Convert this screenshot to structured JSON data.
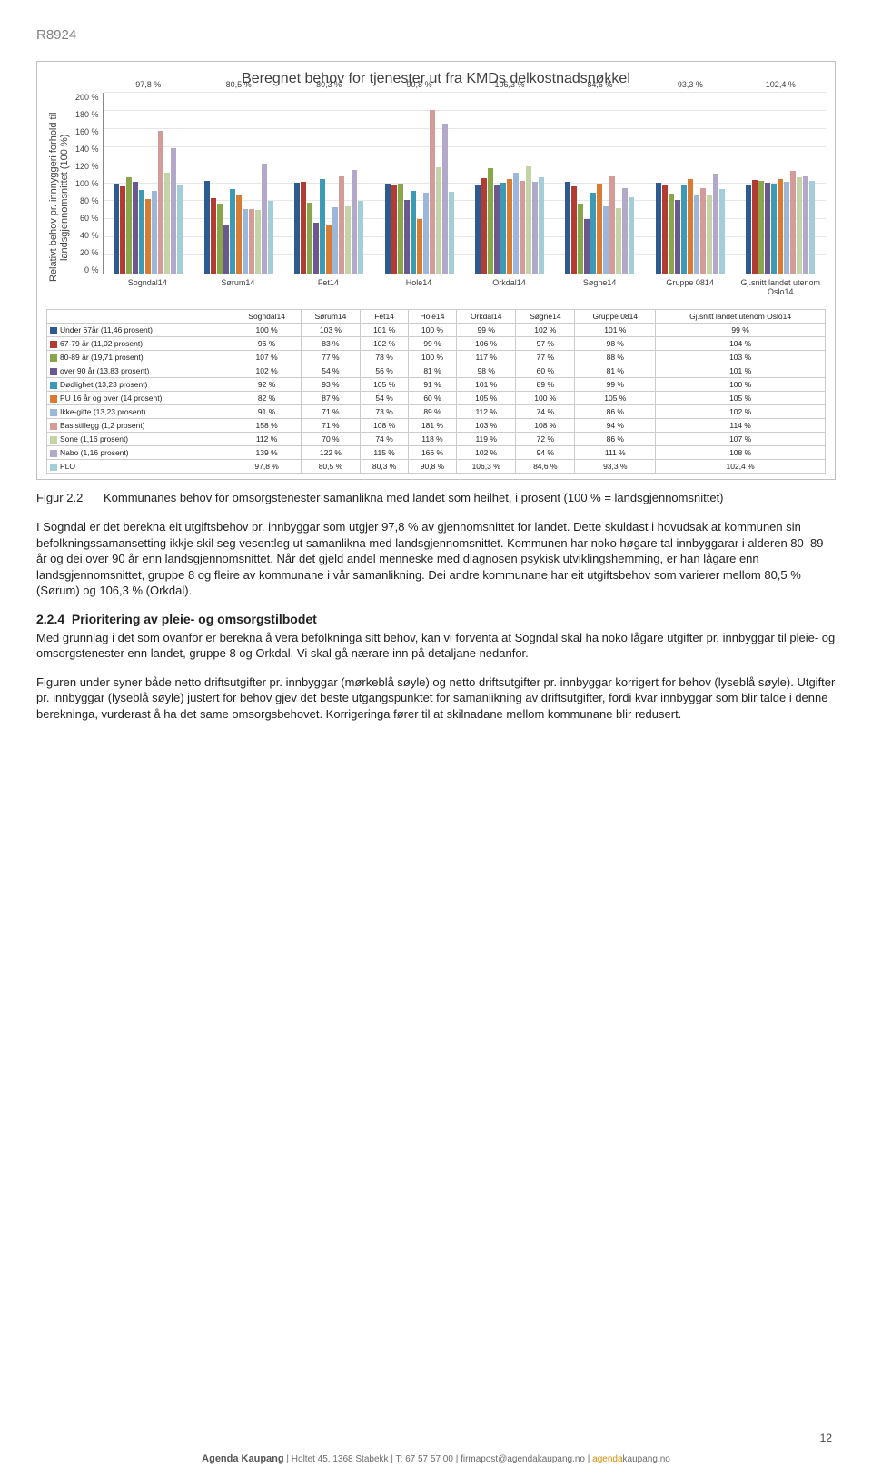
{
  "doc_id": "R8924",
  "chart": {
    "title": "Beregnet behov for tjenester ut fra KMDs delkostnadsnøkkel",
    "y_axis_label": "Relativt behov pr. innnyggeri forhold til landsgjennomsnittet (100 %)",
    "ylim": [
      0,
      200
    ],
    "ytick_step": 20,
    "grid_color": "#e6e6e6",
    "categories": [
      "Sogndal14",
      "Sørum14",
      "Fet14",
      "Hole14",
      "Orkdal14",
      "Søgne14",
      "Gruppe 0814",
      "Gj.snitt landet utenom Oslo14"
    ],
    "plo_values": [
      "97,8 %",
      "80,5 %",
      "80,3 %",
      "90,8 %",
      "106,3 %",
      "84,6 %",
      "93,3 %",
      "102,4 %"
    ],
    "series": [
      {
        "name": "Under 67år (11,46 prosent)",
        "color": "#2e5b8f",
        "values": [
          100,
          103,
          101,
          100,
          99,
          102,
          101,
          99
        ]
      },
      {
        "name": "67-79 år (11,02 prosent)",
        "color": "#b23b32",
        "values": [
          96,
          83,
          102,
          99,
          106,
          97,
          98,
          104
        ]
      },
      {
        "name": "80-89 år (19,71 prosent)",
        "color": "#8aa64b",
        "values": [
          107,
          77,
          78,
          100,
          117,
          77,
          88,
          103
        ]
      },
      {
        "name": "over 90 år (13,83 prosent)",
        "color": "#6b588f",
        "values": [
          102,
          54,
          56,
          81,
          98,
          60,
          81,
          101
        ]
      },
      {
        "name": "Dødlighet (13,23 prosent)",
        "color": "#3d9ab5",
        "values": [
          92,
          93,
          105,
          91,
          101,
          89,
          99,
          100
        ]
      },
      {
        "name": "PU 16 år og over (14 prosent)",
        "color": "#d87b33",
        "values": [
          82,
          87,
          54,
          60,
          105,
          100,
          105,
          105
        ]
      },
      {
        "name": "Ikke-gifte (13,23 prosent)",
        "color": "#9cb7d9",
        "values": [
          91,
          71,
          73,
          89,
          112,
          74,
          86,
          102
        ]
      },
      {
        "name": "Basistillegg (1,2 prosent)",
        "color": "#d39c99",
        "values": [
          158,
          71,
          108,
          181,
          103,
          108,
          94,
          114
        ]
      },
      {
        "name": "Sone (1,16 prosent)",
        "color": "#c5d4a6",
        "values": [
          112,
          70,
          74,
          118,
          119,
          72,
          86,
          107
        ]
      },
      {
        "name": "Nabo (1,16 prosent)",
        "color": "#b2a8c9",
        "values": [
          139,
          122,
          115,
          166,
          102,
          94,
          111,
          108
        ]
      },
      {
        "name": "PLO",
        "color": "#a3cdd9",
        "values": [
          97.8,
          80.5,
          80.3,
          90.8,
          106.3,
          84.6,
          93.3,
          102.4
        ]
      }
    ],
    "table_display": [
      [
        "100 %",
        "103 %",
        "101 %",
        "100 %",
        "99 %",
        "102 %",
        "101 %",
        "99 %"
      ],
      [
        "96 %",
        "83 %",
        "102 %",
        "99 %",
        "106 %",
        "97 %",
        "98 %",
        "104 %"
      ],
      [
        "107 %",
        "77 %",
        "78 %",
        "100 %",
        "117 %",
        "77 %",
        "88 %",
        "103 %"
      ],
      [
        "102 %",
        "54 %",
        "56 %",
        "81 %",
        "98 %",
        "60 %",
        "81 %",
        "101 %"
      ],
      [
        "92 %",
        "93 %",
        "105 %",
        "91 %",
        "101 %",
        "89 %",
        "99 %",
        "100 %"
      ],
      [
        "82 %",
        "87 %",
        "54 %",
        "60 %",
        "105 %",
        "100 %",
        "105 %",
        "105 %"
      ],
      [
        "91 %",
        "71 %",
        "73 %",
        "89 %",
        "112 %",
        "74 %",
        "86 %",
        "102 %"
      ],
      [
        "158 %",
        "71 %",
        "108 %",
        "181 %",
        "103 %",
        "108 %",
        "94 %",
        "114 %"
      ],
      [
        "112 %",
        "70 %",
        "74 %",
        "118 %",
        "119 %",
        "72 %",
        "86 %",
        "107 %"
      ],
      [
        "139 %",
        "122 %",
        "115 %",
        "166 %",
        "102 %",
        "94 %",
        "111 %",
        "108 %"
      ],
      [
        "97,8 %",
        "80,5 %",
        "80,3 %",
        "90,8 %",
        "106,3 %",
        "84,6 %",
        "93,3 %",
        "102,4 %"
      ]
    ]
  },
  "figure": {
    "num": "Figur 2.2",
    "text": "Kommunanes behov for omsorgstenester samanlikna med landet som heilhet, i prosent (100 % = landsgjennomsnittet)"
  },
  "paragraphs": [
    "I Sogndal er det berekna eit utgiftsbehov pr. innbyggar som utgjer 97,8 % av gjennomsnittet for landet. Dette skuldast i hovudsak at kommunen sin befolkningssamansetting ikkje skil seg vesentleg ut samanlikna med landsgjennomsnittet. Kommunen har noko høgare tal innbyggarar i alderen 80–89 år og dei over 90 år enn landsgjennomsnittet. Når det gjeld andel menneske med diagnosen psykisk utviklingshemming, er han lågare enn landsgjennomsnittet, gruppe 8 og fleire av kommunane i vår samanlikning. Dei andre kommunane har eit utgiftsbehov som varierer mellom 80,5 % (Sørum) og 106,3 % (Orkdal)."
  ],
  "section": {
    "num": "2.2.4",
    "title": "Prioritering av pleie- og omsorgstilbodet"
  },
  "paragraphs2": [
    "Med grunnlag i det som ovanfor er berekna å vera befolkninga sitt behov, kan vi forventa at Sogndal skal ha noko lågare utgifter pr. innbyggar til pleie- og omsorgstenester enn landet, gruppe 8 og Orkdal. Vi skal gå nærare inn på detaljane nedanfor.",
    "Figuren under syner både netto driftsutgifter pr. innbyggar (mørkeblå søyle) og netto driftsutgifter pr. innbyggar korrigert for behov (lyseblå søyle). Utgifter pr. innbyggar (lyseblå søyle) justert for behov gjev det beste utgangspunktet for samanlikning av driftsutgifter, fordi kvar innbyggar som blir talde i denne berekninga, vurderast å ha det same omsorgsbehovet. Korrigeringa fører til at skilnadane mellom kommunane blir redusert."
  ],
  "page_num": "12",
  "footer": {
    "brand": "Agenda Kaupang",
    "sep": " | ",
    "addr": "Holtet 45, 1368 Stabekk",
    "tel_label": "T: ",
    "tel": "67 57 57 00",
    "email": "firmapost@agendakaupang.no",
    "site_a": "agenda",
    "site_b": "kaupang.no"
  }
}
